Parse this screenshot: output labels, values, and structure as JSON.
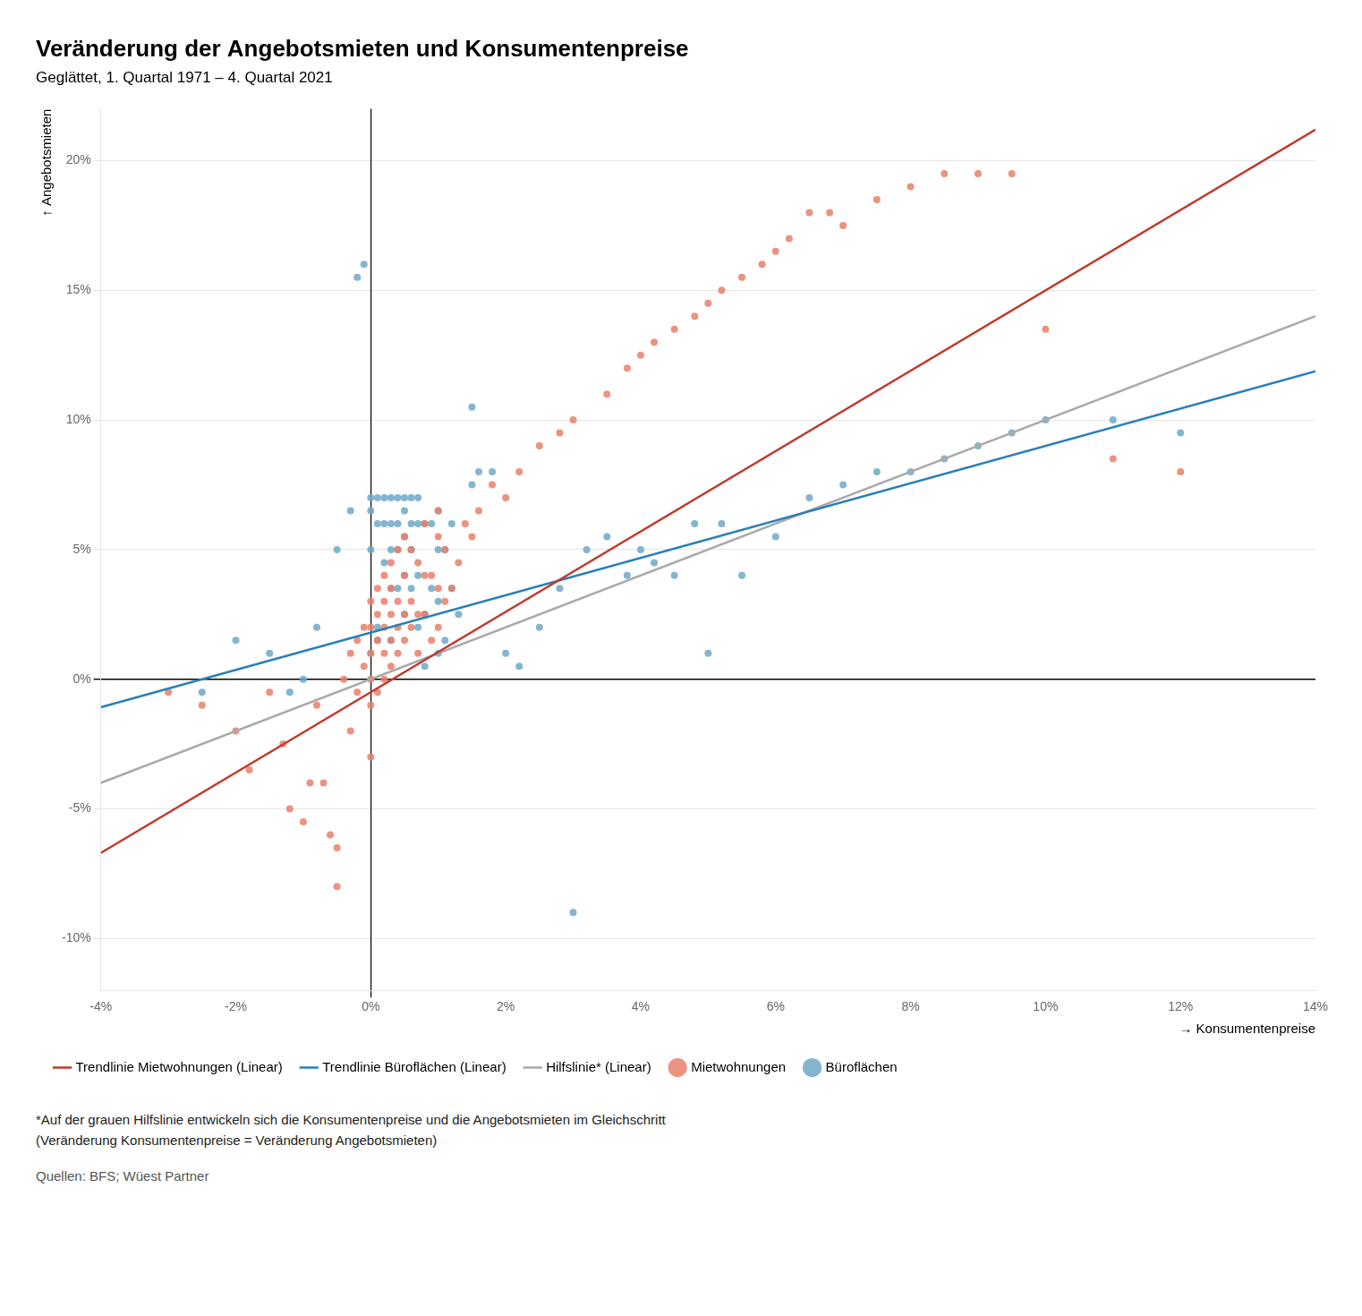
{
  "chart_data": {
    "type": "scatter",
    "title": "Veränderung der Angebotsmieten und Konsumentenpreise",
    "subtitle": "Geglättet, 1. Quartal 1971 – 4. Quartal 2021",
    "xlabel": "→ Konsumentenpreise",
    "ylabel": "↑ Angebotsmieten",
    "xlim": [
      -0.04,
      0.14
    ],
    "ylim": [
      -0.12,
      0.22
    ],
    "xticks": [
      {
        "value": -0.04,
        "label": "-4%"
      },
      {
        "value": -0.02,
        "label": "-2%"
      },
      {
        "value": 0.0,
        "label": "0%"
      },
      {
        "value": 0.02,
        "label": "2%"
      },
      {
        "value": 0.04,
        "label": "4%"
      },
      {
        "value": 0.06,
        "label": "6%"
      },
      {
        "value": 0.08,
        "label": "8%"
      },
      {
        "value": 0.1,
        "label": "10%"
      },
      {
        "value": 0.12,
        "label": "12%"
      },
      {
        "value": 0.14,
        "label": "14%"
      }
    ],
    "yticks": [
      {
        "value": -0.1,
        "label": "-10%"
      },
      {
        "value": -0.05,
        "label": "-5%"
      },
      {
        "value": 0.0,
        "label": "0%"
      },
      {
        "value": 0.05,
        "label": "5%"
      },
      {
        "value": 0.1,
        "label": "10%"
      },
      {
        "value": 0.15,
        "label": "15%"
      },
      {
        "value": 0.2,
        "label": "20%"
      }
    ],
    "grid": "y",
    "legend": "bottom",
    "series": [
      {
        "name": "Mietwohnungen",
        "type": "scatter",
        "marker": "circle",
        "color": "#E8806A",
        "x": [
          -0.03,
          -0.025,
          -0.02,
          -0.018,
          -0.015,
          -0.013,
          -0.012,
          -0.01,
          -0.009,
          -0.008,
          -0.007,
          -0.006,
          -0.005,
          -0.005,
          -0.004,
          -0.003,
          -0.003,
          -0.002,
          -0.002,
          -0.001,
          -0.001,
          0.0,
          0.0,
          0.0,
          0.0,
          0.0,
          0.0,
          0.001,
          0.001,
          0.001,
          0.001,
          0.002,
          0.002,
          0.002,
          0.002,
          0.002,
          0.003,
          0.003,
          0.003,
          0.003,
          0.003,
          0.004,
          0.004,
          0.004,
          0.004,
          0.005,
          0.005,
          0.005,
          0.005,
          0.006,
          0.006,
          0.006,
          0.007,
          0.007,
          0.007,
          0.008,
          0.008,
          0.008,
          0.009,
          0.009,
          0.01,
          0.01,
          0.01,
          0.01,
          0.011,
          0.011,
          0.012,
          0.013,
          0.014,
          0.015,
          0.016,
          0.018,
          0.02,
          0.022,
          0.025,
          0.028,
          0.03,
          0.035,
          0.038,
          0.04,
          0.042,
          0.045,
          0.048,
          0.05,
          0.052,
          0.055,
          0.058,
          0.06,
          0.062,
          0.065,
          0.068,
          0.07,
          0.075,
          0.08,
          0.085,
          0.09,
          0.095,
          0.1,
          0.11,
          0.12
        ],
        "values": [
          -0.005,
          -0.01,
          -0.02,
          -0.035,
          -0.005,
          -0.025,
          -0.05,
          -0.055,
          -0.04,
          -0.01,
          -0.04,
          -0.06,
          -0.08,
          -0.065,
          0.0,
          0.01,
          -0.02,
          -0.005,
          0.015,
          0.005,
          0.02,
          -0.03,
          -0.01,
          0.0,
          0.01,
          0.02,
          0.03,
          -0.005,
          0.015,
          0.025,
          0.035,
          0.0,
          0.01,
          0.02,
          0.03,
          0.04,
          0.005,
          0.015,
          0.025,
          0.035,
          0.045,
          0.01,
          0.02,
          0.03,
          0.05,
          0.015,
          0.025,
          0.04,
          0.055,
          0.02,
          0.03,
          0.05,
          0.01,
          0.025,
          0.045,
          0.025,
          0.04,
          0.06,
          0.015,
          0.04,
          0.02,
          0.035,
          0.055,
          0.065,
          0.03,
          0.05,
          0.035,
          0.045,
          0.06,
          0.055,
          0.065,
          0.075,
          0.07,
          0.08,
          0.09,
          0.095,
          0.1,
          0.11,
          0.12,
          0.125,
          0.13,
          0.135,
          0.14,
          0.145,
          0.15,
          0.155,
          0.16,
          0.165,
          0.17,
          0.18,
          0.18,
          0.175,
          0.185,
          0.19,
          0.195,
          0.195,
          0.195,
          0.135,
          0.085,
          0.08
        ]
      },
      {
        "name": "Büroflächen",
        "type": "scatter",
        "marker": "circle",
        "color": "#6FA8C8",
        "x": [
          -0.025,
          -0.02,
          -0.015,
          -0.012,
          -0.01,
          -0.008,
          -0.005,
          -0.003,
          -0.002,
          -0.001,
          0.0,
          0.0,
          0.0,
          0.0,
          0.001,
          0.001,
          0.001,
          0.001,
          0.002,
          0.002,
          0.002,
          0.003,
          0.003,
          0.003,
          0.003,
          0.003,
          0.004,
          0.004,
          0.004,
          0.004,
          0.005,
          0.005,
          0.005,
          0.005,
          0.005,
          0.006,
          0.006,
          0.006,
          0.006,
          0.007,
          0.007,
          0.007,
          0.007,
          0.008,
          0.008,
          0.008,
          0.009,
          0.009,
          0.01,
          0.01,
          0.01,
          0.01,
          0.011,
          0.011,
          0.012,
          0.012,
          0.013,
          0.015,
          0.015,
          0.016,
          0.018,
          0.02,
          0.022,
          0.025,
          0.028,
          0.03,
          0.032,
          0.035,
          0.038,
          0.04,
          0.042,
          0.045,
          0.048,
          0.05,
          0.052,
          0.055,
          0.06,
          0.065,
          0.07,
          0.075,
          0.08,
          0.085,
          0.09,
          0.095,
          0.1,
          0.11,
          0.12
        ],
        "values": [
          -0.005,
          0.015,
          0.01,
          -0.005,
          0.0,
          0.02,
          0.05,
          0.065,
          0.155,
          0.16,
          0.01,
          0.05,
          0.065,
          0.07,
          0.015,
          0.06,
          0.07,
          0.02,
          0.045,
          0.06,
          0.07,
          0.015,
          0.035,
          0.05,
          0.06,
          0.07,
          0.035,
          0.05,
          0.06,
          0.07,
          0.025,
          0.04,
          0.055,
          0.065,
          0.07,
          0.035,
          0.05,
          0.06,
          0.07,
          0.02,
          0.04,
          0.06,
          0.07,
          0.005,
          0.025,
          0.06,
          0.035,
          0.06,
          0.01,
          0.03,
          0.05,
          0.065,
          0.015,
          0.05,
          0.035,
          0.06,
          0.025,
          0.075,
          0.105,
          0.08,
          0.08,
          0.01,
          0.005,
          0.02,
          0.035,
          -0.09,
          0.05,
          0.055,
          0.04,
          0.05,
          0.045,
          0.04,
          0.06,
          0.01,
          0.06,
          0.04,
          0.055,
          0.07,
          0.075,
          0.08,
          0.08,
          0.085,
          0.09,
          0.095,
          0.1,
          0.1,
          0.095
        ]
      },
      {
        "name": "Trendlinie Mietwohnungen (Linear)",
        "type": "line",
        "line_style": "solid",
        "color": "#C0392B",
        "x": [
          -0.04,
          0.14
        ],
        "values": [
          -0.067,
          0.212
        ]
      },
      {
        "name": "Trendlinie Büroflächen (Linear)",
        "type": "line",
        "line_style": "solid",
        "color": "#2980B9",
        "x": [
          -0.04,
          0.14
        ],
        "values": [
          -0.0108,
          0.1188
        ]
      },
      {
        "name": "Hilfslinie* (Linear)",
        "type": "line",
        "line_style": "solid",
        "color": "#AAAAAA",
        "x": [
          -0.04,
          0.14
        ],
        "values": [
          -0.04,
          0.14
        ]
      }
    ],
    "footnotes": [
      "*Auf der grauen Hilfslinie entwickeln sich die Konsumentenpreise und die Angebotsmieten im Gleichschritt",
      "(Veränderung Konsumentenpreise = Veränderung Angebotsmieten)"
    ],
    "source": "Quellen: BFS; Wüest Partner"
  }
}
